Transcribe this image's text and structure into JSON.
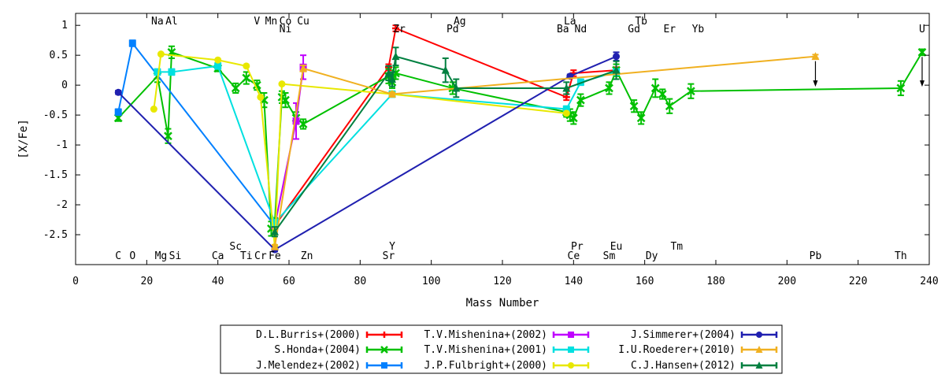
{
  "chart_data": {
    "type": "line",
    "xlabel": "Mass Number",
    "ylabel": "[X/Fe]",
    "xlim": [
      0,
      240
    ],
    "ylim": [
      -3,
      1.2
    ],
    "xticks": [
      0,
      20,
      40,
      60,
      80,
      100,
      120,
      140,
      160,
      180,
      200,
      220,
      240
    ],
    "yticks": [
      1,
      0.5,
      0,
      -0.5,
      -1,
      -1.5,
      -2,
      -2.5
    ],
    "ytick_labels": [
      "1",
      "0.5",
      "0",
      "-0.5",
      "-1",
      "-1.5",
      "-2",
      "-2.5"
    ],
    "grid": false,
    "element_labels_top": [
      {
        "text": "Na",
        "x": 23,
        "row": 1
      },
      {
        "text": "Al",
        "x": 27,
        "row": 1
      },
      {
        "text": "V",
        "x": 51,
        "row": 1
      },
      {
        "text": "Mn",
        "x": 55,
        "row": 1
      },
      {
        "text": "Co",
        "x": 59,
        "row": 1
      },
      {
        "text": "Cu",
        "x": 64,
        "row": 1
      },
      {
        "text": "Ni",
        "x": 59,
        "row": 2
      },
      {
        "text": "Zr",
        "x": 91,
        "row": 2
      },
      {
        "text": "Ag",
        "x": 108,
        "row": 1
      },
      {
        "text": "Pd",
        "x": 106,
        "row": 2
      },
      {
        "text": "La",
        "x": 139,
        "row": 1
      },
      {
        "text": "Ba",
        "x": 137,
        "row": 2
      },
      {
        "text": "Nd",
        "x": 142,
        "row": 2
      },
      {
        "text": "Tb",
        "x": 159,
        "row": 1
      },
      {
        "text": "Gd",
        "x": 157,
        "row": 2
      },
      {
        "text": "Er",
        "x": 167,
        "row": 2
      },
      {
        "text": "Yb",
        "x": 175,
        "row": 2
      },
      {
        "text": "U",
        "x": 238,
        "row": 2
      }
    ],
    "element_labels_bottom": [
      {
        "text": "C",
        "x": 12,
        "row": 2
      },
      {
        "text": "O",
        "x": 16,
        "row": 2
      },
      {
        "text": "Mg",
        "x": 24,
        "row": 2
      },
      {
        "text": "Si",
        "x": 28,
        "row": 2
      },
      {
        "text": "Ca",
        "x": 40,
        "row": 2
      },
      {
        "text": "Sc",
        "x": 45,
        "row": 1
      },
      {
        "text": "Ti",
        "x": 48,
        "row": 2
      },
      {
        "text": "Cr",
        "x": 52,
        "row": 2
      },
      {
        "text": "Fe",
        "x": 56,
        "row": 2
      },
      {
        "text": "Zn",
        "x": 65,
        "row": 2
      },
      {
        "text": "Y",
        "x": 89,
        "row": 1
      },
      {
        "text": "Sr",
        "x": 88,
        "row": 2
      },
      {
        "text": "Pr",
        "x": 141,
        "row": 1
      },
      {
        "text": "Ce",
        "x": 140,
        "row": 2
      },
      {
        "text": "Eu",
        "x": 152,
        "row": 1
      },
      {
        "text": "Sm",
        "x": 150,
        "row": 2
      },
      {
        "text": "Tm",
        "x": 169,
        "row": 1
      },
      {
        "text": "Dy",
        "x": 162,
        "row": 2
      },
      {
        "text": "Pb",
        "x": 208,
        "row": 2
      },
      {
        "text": "Th",
        "x": 232,
        "row": 2
      }
    ],
    "upper_limits": [
      {
        "x": 208,
        "y": 0.48,
        "to": 0,
        "series": "I.U.Roederer+(2010)"
      },
      {
        "x": 238,
        "y": 0.55,
        "to": 0,
        "series": "S.Honda+(2004)"
      }
    ],
    "legend_position": "bottom-center",
    "series": [
      {
        "name": "D.L.Burris+(2000)",
        "color": "#ff0000",
        "marker": "plus",
        "points": [
          [
            56,
            -2.35,
            0.05
          ],
          [
            88,
            0.3,
            0.05
          ],
          [
            90,
            0.95,
            0.05
          ],
          [
            138,
            -0.2,
            0.05
          ],
          [
            140,
            0.2,
            0.05
          ],
          [
            152,
            0.25,
            0.05
          ]
        ]
      },
      {
        "name": "S.Honda+(2004)",
        "color": "#00c000",
        "marker": "cross",
        "points": [
          [
            12,
            -0.55,
            0.05
          ],
          [
            23,
            0.15,
            0.1
          ],
          [
            26,
            -0.85,
            0.12
          ],
          [
            27,
            0.55,
            0.1
          ],
          [
            40,
            0.28,
            0.05
          ],
          [
            45,
            -0.05,
            0.08
          ],
          [
            48,
            0.12,
            0.1
          ],
          [
            51,
            0.0,
            0.08
          ],
          [
            53,
            -0.25,
            0.12
          ],
          [
            55,
            -2.4,
            0.12
          ],
          [
            56,
            -2.3,
            0.08
          ],
          [
            58,
            -0.2,
            0.1
          ],
          [
            59,
            -0.25,
            0.12
          ],
          [
            62,
            -0.55,
            0.1
          ],
          [
            64,
            -0.65,
            0.08
          ],
          [
            88,
            0.15,
            0.12
          ],
          [
            89,
            0.05,
            0.1
          ],
          [
            90,
            0.2,
            0.1
          ],
          [
            106,
            -0.05,
            0.1
          ],
          [
            138,
            -0.45,
            0.08
          ],
          [
            139,
            -0.5,
            0.1
          ],
          [
            140,
            -0.55,
            0.1
          ],
          [
            142,
            -0.25,
            0.1
          ],
          [
            150,
            -0.05,
            0.1
          ],
          [
            152,
            0.25,
            0.1
          ],
          [
            157,
            -0.35,
            0.1
          ],
          [
            159,
            -0.55,
            0.1
          ],
          [
            163,
            -0.05,
            0.15
          ],
          [
            165,
            -0.15,
            0.08
          ],
          [
            167,
            -0.35,
            0.12
          ],
          [
            173,
            -0.1,
            0.12
          ],
          [
            232,
            -0.05,
            0.12
          ],
          [
            238,
            0.55,
            0.05
          ]
        ]
      },
      {
        "name": "J.Melendez+(2002)",
        "color": "#0080ff",
        "marker": "square",
        "points": [
          [
            12,
            -0.45,
            0.05
          ],
          [
            16,
            0.7,
            0.05
          ],
          [
            56,
            -2.35,
            0.05
          ]
        ]
      },
      {
        "name": "T.V.Mishenina+(2002)",
        "color": "#c000ff",
        "marker": "square",
        "points": [
          [
            56,
            -2.35,
            0.05
          ],
          [
            62,
            -0.6,
            0.3
          ],
          [
            64,
            0.3,
            0.2
          ]
        ]
      },
      {
        "name": "T.V.Mishenina+(2001)",
        "color": "#00e0e0",
        "marker": "square",
        "points": [
          [
            23,
            0.22,
            0.05
          ],
          [
            27,
            0.22,
            0.05
          ],
          [
            40,
            0.32,
            0.05
          ],
          [
            56,
            -2.3,
            0.05
          ],
          [
            89,
            -0.15,
            0.05
          ],
          [
            138,
            -0.4,
            0.05
          ],
          [
            142,
            0.05,
            0.05
          ],
          [
            152,
            0.22,
            0.05
          ]
        ]
      },
      {
        "name": "J.P.Fulbright+(2000)",
        "color": "#e8e800",
        "marker": "circle",
        "points": [
          [
            22,
            -0.4,
            0.02
          ],
          [
            24,
            0.52,
            0.02
          ],
          [
            40,
            0.42,
            0.02
          ],
          [
            48,
            0.32,
            0.02
          ],
          [
            52,
            -0.2,
            0.02
          ],
          [
            56,
            -2.7,
            0.02
          ],
          [
            58,
            0.02,
            0.02
          ],
          [
            89,
            -0.15,
            0.02
          ],
          [
            138,
            -0.47,
            0.02
          ]
        ]
      },
      {
        "name": "J.Simmerer+(2004)",
        "color": "#2020b0",
        "marker": "circle",
        "points": [
          [
            12,
            -0.12,
            0.03
          ],
          [
            56,
            -2.75,
            0.03
          ],
          [
            139,
            0.15,
            0.03
          ],
          [
            152,
            0.48,
            0.07
          ]
        ]
      },
      {
        "name": "I.U.Roederer+(2010)",
        "color": "#f0b020",
        "marker": "triangle",
        "points": [
          [
            56,
            -2.7,
            0.03
          ],
          [
            64,
            0.28,
            0.05
          ],
          [
            89,
            -0.15,
            0.03
          ],
          [
            208,
            0.48,
            0.03
          ]
        ]
      },
      {
        "name": "C.J.Hansen+(2012)",
        "color": "#008040",
        "marker": "triangle",
        "points": [
          [
            56,
            -2.45,
            0.08
          ],
          [
            88,
            0.2,
            0.12
          ],
          [
            89,
            0.1,
            0.12
          ],
          [
            90,
            0.48,
            0.15
          ],
          [
            104,
            0.25,
            0.2
          ],
          [
            107,
            -0.05,
            0.15
          ],
          [
            138,
            -0.05,
            0.1
          ],
          [
            152,
            0.25,
            0.15
          ]
        ]
      }
    ]
  }
}
